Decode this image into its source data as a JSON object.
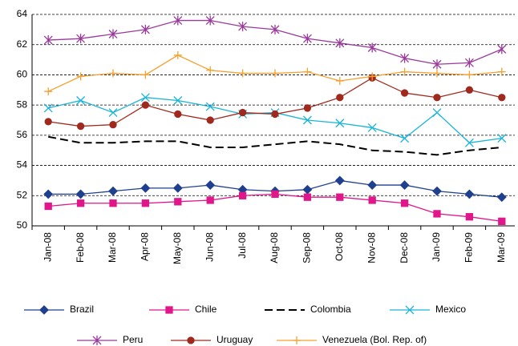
{
  "chart_data": {
    "type": "line",
    "categories": [
      "Jan-08",
      "Feb-08",
      "Mar-08",
      "Apr-08",
      "May-08",
      "Jun-08",
      "Jul-08",
      "Aug-08",
      "Sep-08",
      "Oct-08",
      "Nov-08",
      "Dec-08",
      "Jan-09",
      "Feb-09",
      "Mar-09"
    ],
    "ylim": [
      50,
      64
    ],
    "yticks": [
      50,
      52,
      54,
      56,
      58,
      60,
      62,
      64
    ],
    "grid": true,
    "legend": "bottom",
    "series": [
      {
        "name": "Brazil",
        "color": "#1f3f8f",
        "marker": "diamond",
        "dash": false,
        "values": [
          52.1,
          52.1,
          52.3,
          52.5,
          52.5,
          52.7,
          52.4,
          52.3,
          52.4,
          53.0,
          52.7,
          52.7,
          52.3,
          52.1,
          51.9
        ]
      },
      {
        "name": "Chile",
        "color": "#e0178a",
        "marker": "square",
        "dash": false,
        "values": [
          51.3,
          51.5,
          51.5,
          51.5,
          51.6,
          51.7,
          52.0,
          52.1,
          51.9,
          51.9,
          51.7,
          51.5,
          50.8,
          50.6,
          50.3
        ]
      },
      {
        "name": "Colombia",
        "color": "#000000",
        "marker": "none",
        "dash": true,
        "values": [
          55.9,
          55.5,
          55.5,
          55.6,
          55.6,
          55.2,
          55.2,
          55.4,
          55.6,
          55.4,
          55.0,
          54.9,
          54.7,
          55.0,
          55.2
        ]
      },
      {
        "name": "Mexico",
        "color": "#19b4d8",
        "marker": "x",
        "dash": false,
        "values": [
          57.8,
          58.3,
          57.5,
          58.5,
          58.3,
          57.9,
          57.4,
          57.5,
          57.0,
          56.8,
          56.5,
          55.8,
          57.5,
          55.5,
          55.8
        ]
      },
      {
        "name": "Peru",
        "color": "#9b3a9b",
        "marker": "star",
        "dash": false,
        "values": [
          62.3,
          62.4,
          62.7,
          63.0,
          63.6,
          63.6,
          63.2,
          63.0,
          62.4,
          62.1,
          61.8,
          61.1,
          60.7,
          60.8,
          61.7
        ]
      },
      {
        "name": "Uruguay",
        "color": "#a0291e",
        "marker": "circle",
        "dash": false,
        "values": [
          56.9,
          56.6,
          56.7,
          58.0,
          57.4,
          57.0,
          57.5,
          57.4,
          57.8,
          58.5,
          59.8,
          58.8,
          58.5,
          59.0,
          58.5
        ]
      },
      {
        "name": "Venezuela (Bol. Rep. of)",
        "color": "#f5a030",
        "marker": "plus",
        "dash": false,
        "values": [
          58.9,
          59.9,
          60.1,
          60.0,
          61.3,
          60.3,
          60.1,
          60.1,
          60.2,
          59.6,
          59.9,
          60.2,
          60.1,
          60.0,
          60.2
        ]
      }
    ]
  }
}
